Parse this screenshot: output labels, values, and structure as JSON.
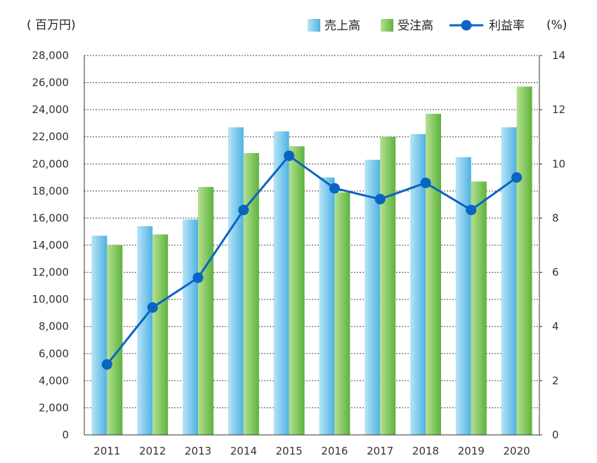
{
  "chart_data": {
    "type": "bar",
    "categories": [
      "2011",
      "2012",
      "2013",
      "2014",
      "2015",
      "2016",
      "2017",
      "2018",
      "2019",
      "2020"
    ],
    "series": [
      {
        "name": "売上高",
        "type": "bar",
        "axis": "left",
        "color": "#6ec3ea",
        "values": [
          14700,
          15400,
          15900,
          22700,
          22400,
          19000,
          20300,
          22200,
          20500,
          22700
        ]
      },
      {
        "name": "受注高",
        "type": "bar",
        "axis": "left",
        "color": "#7cc660",
        "values": [
          14000,
          14800,
          18300,
          20800,
          21300,
          17900,
          22000,
          23700,
          18700,
          25700
        ]
      },
      {
        "name": "利益率",
        "type": "line",
        "axis": "right",
        "color": "#0a64c2",
        "values": [
          2.6,
          4.7,
          5.8,
          8.3,
          10.3,
          9.1,
          8.7,
          9.3,
          8.3,
          9.5
        ]
      }
    ],
    "y_left": {
      "unit_label": "( 百万円)",
      "ylim": [
        0,
        28000
      ],
      "ticks": [
        0,
        2000,
        4000,
        6000,
        8000,
        10000,
        12000,
        14000,
        16000,
        18000,
        20000,
        22000,
        24000,
        26000,
        28000
      ],
      "tick_labels": [
        "0",
        "2,000",
        "4,000",
        "6,000",
        "8,000",
        "10,000",
        "12,000",
        "14,000",
        "16,000",
        "18,000",
        "20,000",
        "22,000",
        "24,000",
        "26,000",
        "28,000"
      ]
    },
    "y_right": {
      "unit_label": "(%)",
      "ylim": [
        0,
        14
      ],
      "ticks": [
        0,
        2,
        4,
        6,
        8,
        10,
        12,
        14
      ],
      "tick_labels": [
        "0",
        "2",
        "4",
        "6",
        "8",
        "10",
        "12",
        "14"
      ]
    },
    "grid": true,
    "legend_position": "top-right"
  }
}
